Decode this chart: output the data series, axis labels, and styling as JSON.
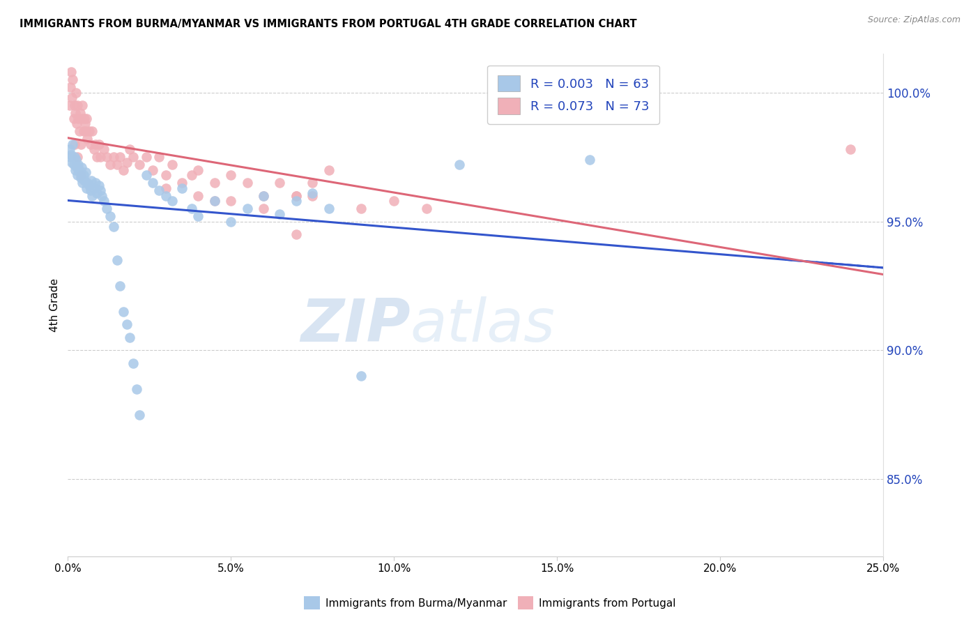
{
  "title": "IMMIGRANTS FROM BURMA/MYANMAR VS IMMIGRANTS FROM PORTUGAL 4TH GRADE CORRELATION CHART",
  "source": "Source: ZipAtlas.com",
  "ylabel": "4th Grade",
  "xlim": [
    0.0,
    25.0
  ],
  "ylim": [
    82.0,
    101.5
  ],
  "yticks": [
    85.0,
    90.0,
    95.0,
    100.0
  ],
  "xticks": [
    0.0,
    5.0,
    10.0,
    15.0,
    20.0,
    25.0
  ],
  "blue_color": "#a8c8e8",
  "pink_color": "#f0b0b8",
  "blue_line_color": "#3355cc",
  "pink_line_color": "#dd6677",
  "blue_R": 0.003,
  "blue_N": 63,
  "pink_R": 0.073,
  "pink_N": 73,
  "blue_scatter_x": [
    0.05,
    0.08,
    0.1,
    0.12,
    0.15,
    0.18,
    0.2,
    0.22,
    0.25,
    0.28,
    0.3,
    0.32,
    0.35,
    0.38,
    0.4,
    0.42,
    0.45,
    0.48,
    0.5,
    0.55,
    0.58,
    0.6,
    0.65,
    0.7,
    0.72,
    0.75,
    0.8,
    0.85,
    0.9,
    0.95,
    1.0,
    1.05,
    1.1,
    1.2,
    1.3,
    1.4,
    1.5,
    1.6,
    1.7,
    1.8,
    1.9,
    2.0,
    2.1,
    2.2,
    2.4,
    2.6,
    2.8,
    3.0,
    3.2,
    3.5,
    3.8,
    4.0,
    4.5,
    5.0,
    5.5,
    6.0,
    6.5,
    7.0,
    7.5,
    8.0,
    9.0,
    12.0,
    16.0
  ],
  "blue_scatter_y": [
    97.8,
    97.5,
    97.6,
    97.3,
    98.0,
    97.2,
    97.5,
    97.0,
    97.4,
    97.1,
    96.8,
    97.2,
    97.0,
    96.9,
    96.7,
    97.1,
    96.5,
    96.8,
    96.6,
    96.9,
    96.3,
    96.5,
    96.4,
    96.2,
    96.6,
    96.0,
    96.3,
    96.5,
    96.1,
    96.4,
    96.2,
    96.0,
    95.8,
    95.5,
    95.2,
    94.8,
    93.5,
    92.5,
    91.5,
    91.0,
    90.5,
    89.5,
    88.5,
    87.5,
    96.8,
    96.5,
    96.2,
    96.0,
    95.8,
    96.3,
    95.5,
    95.2,
    95.8,
    95.0,
    95.5,
    96.0,
    95.3,
    95.8,
    96.1,
    95.5,
    89.0,
    97.2,
    97.4
  ],
  "pink_scatter_x": [
    0.05,
    0.08,
    0.1,
    0.12,
    0.15,
    0.18,
    0.2,
    0.22,
    0.25,
    0.28,
    0.3,
    0.32,
    0.35,
    0.38,
    0.4,
    0.42,
    0.45,
    0.48,
    0.5,
    0.52,
    0.55,
    0.58,
    0.6,
    0.65,
    0.7,
    0.75,
    0.8,
    0.85,
    0.9,
    0.95,
    1.0,
    1.1,
    1.2,
    1.3,
    1.4,
    1.5,
    1.6,
    1.7,
    1.8,
    1.9,
    2.0,
    2.2,
    2.4,
    2.6,
    2.8,
    3.0,
    3.2,
    3.5,
    3.8,
    4.0,
    4.5,
    5.0,
    5.5,
    6.0,
    6.5,
    7.0,
    7.5,
    8.0,
    9.0,
    10.0,
    11.0,
    3.0,
    4.0,
    5.0,
    6.0,
    7.0,
    0.2,
    0.3,
    0.4,
    7.5,
    4.5,
    7.0,
    24.0
  ],
  "pink_scatter_y": [
    99.5,
    100.2,
    100.8,
    99.8,
    100.5,
    99.0,
    99.5,
    99.2,
    100.0,
    98.8,
    99.5,
    99.0,
    98.5,
    99.2,
    98.0,
    99.0,
    99.5,
    98.5,
    99.0,
    98.8,
    98.5,
    99.0,
    98.2,
    98.5,
    98.0,
    98.5,
    97.8,
    98.0,
    97.5,
    98.0,
    97.5,
    97.8,
    97.5,
    97.2,
    97.5,
    97.2,
    97.5,
    97.0,
    97.3,
    97.8,
    97.5,
    97.2,
    97.5,
    97.0,
    97.5,
    96.8,
    97.2,
    96.5,
    96.8,
    97.0,
    96.5,
    96.8,
    96.5,
    96.0,
    96.5,
    96.0,
    96.5,
    97.0,
    95.5,
    95.8,
    95.5,
    96.3,
    96.0,
    95.8,
    95.5,
    96.0,
    98.0,
    97.5,
    96.8,
    96.0,
    95.8,
    94.5,
    97.8
  ],
  "watermark_zip": "ZIP",
  "watermark_atlas": "atlas",
  "legend_blue_label": "Immigrants from Burma/Myanmar",
  "legend_pink_label": "Immigrants from Portugal"
}
